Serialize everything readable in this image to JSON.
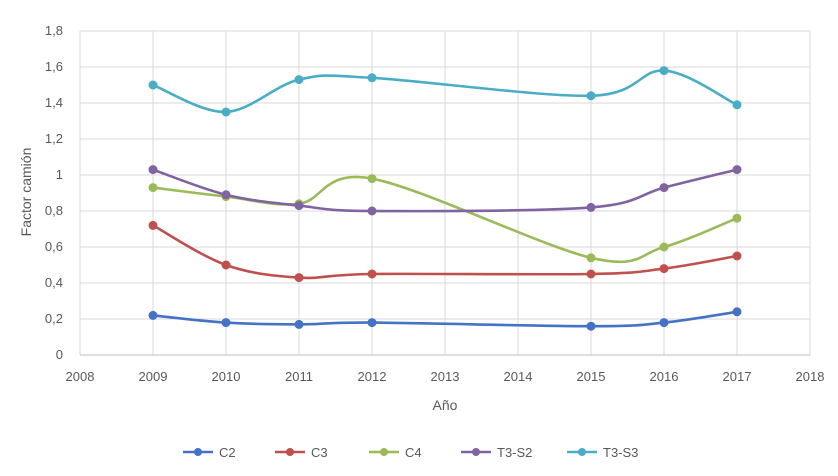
{
  "chart_data": {
    "type": "line",
    "title": "",
    "xlabel": "Año",
    "ylabel": "Factor camión",
    "xlim": [
      2008,
      2018
    ],
    "ylim": [
      0,
      1.8
    ],
    "x_ticks": [
      "2008",
      "2009",
      "2010",
      "2011",
      "2012",
      "2013",
      "2014",
      "2015",
      "2016",
      "2017",
      "2018"
    ],
    "y_ticks": [
      "0",
      "0,2",
      "0,4",
      "0,6",
      "0,8",
      "1",
      "1,2",
      "1,4",
      "1,6",
      "1,8"
    ],
    "grid": true,
    "legend_position": "bottom",
    "line_style": "smoothed",
    "series": [
      {
        "name": "C2",
        "color": "#4472C4",
        "x": [
          2009,
          2010,
          2011,
          2012,
          2015,
          2016,
          2017
        ],
        "y": [
          0.22,
          0.18,
          0.17,
          0.18,
          0.16,
          0.18,
          0.24
        ]
      },
      {
        "name": "C3",
        "color": "#C0504D",
        "x": [
          2009,
          2010,
          2011,
          2012,
          2015,
          2016,
          2017
        ],
        "y": [
          0.72,
          0.5,
          0.43,
          0.45,
          0.45,
          0.48,
          0.55
        ]
      },
      {
        "name": "C4",
        "color": "#9BBB59",
        "x": [
          2009,
          2010,
          2011,
          2012,
          2015,
          2016,
          2017
        ],
        "y": [
          0.93,
          0.88,
          0.84,
          0.98,
          0.54,
          0.6,
          0.76
        ]
      },
      {
        "name": "T3-S2",
        "color": "#8064A2",
        "x": [
          2009,
          2010,
          2011,
          2012,
          2015,
          2016,
          2017
        ],
        "y": [
          1.03,
          0.89,
          0.83,
          0.8,
          0.82,
          0.93,
          1.03
        ]
      },
      {
        "name": "T3-S3",
        "color": "#4BACC6",
        "x": [
          2009,
          2010,
          2011,
          2012,
          2015,
          2016,
          2017
        ],
        "y": [
          1.5,
          1.35,
          1.53,
          1.54,
          1.44,
          1.58,
          1.39
        ]
      }
    ]
  }
}
